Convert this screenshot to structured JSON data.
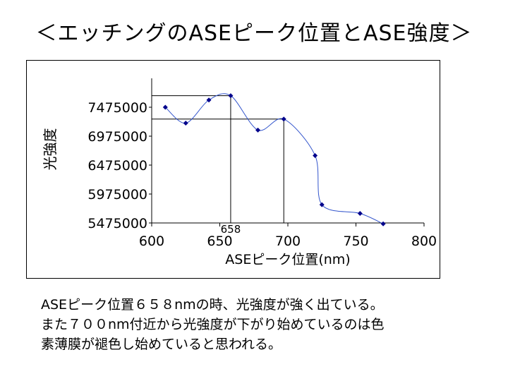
{
  "title": "＜エッチングのASEピーク位置とASE強度＞",
  "chart_data": {
    "type": "line",
    "xlabel": "ASEピーク位置(nm)",
    "ylabel": "光強度",
    "xlim": [
      600,
      800
    ],
    "ylim": [
      5475000,
      7975000
    ],
    "x_ticks": [
      600,
      650,
      700,
      750,
      800
    ],
    "y_ticks": [
      5475000,
      5975000,
      6475000,
      6975000,
      7475000
    ],
    "series": [
      {
        "x": [
          610,
          625,
          642,
          658,
          678,
          697,
          720,
          725,
          753,
          770
        ],
        "y": [
          7475000,
          7200000,
          7600000,
          7675000,
          7080000,
          7270000,
          6640000,
          5790000,
          5640000,
          5460000
        ]
      }
    ],
    "annotations": [
      {
        "label": "658",
        "x": 658,
        "y": 7675000
      },
      {
        "label": "",
        "x": 697,
        "y": 7270000
      }
    ],
    "marker_color": "#00008b",
    "line_color": "#3355cc"
  },
  "notes": [
    "ASEピーク位置６５８nmの時、光強度が強く出ている。",
    "また７００nm付近から光強度が下がり始めているのは色",
    "素薄膜が褪色し始めていると思われる。"
  ]
}
